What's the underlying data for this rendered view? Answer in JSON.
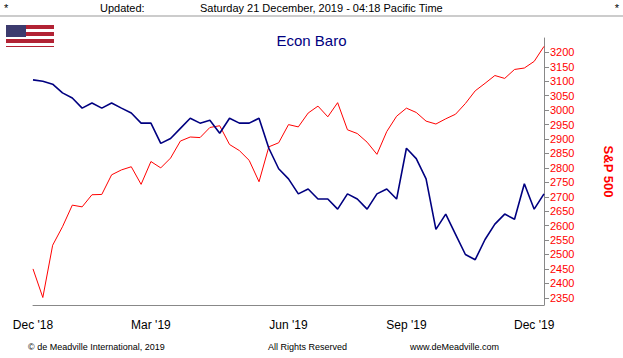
{
  "chart_data": {
    "type": "line",
    "title": "Econ Baro",
    "ylabel": "S&P 500",
    "annotations": [
      "*",
      "Updated:",
      "Saturday 21 December, 2019 - 04:18 Pacific Time",
      "*",
      "© de Meadville International, 2019",
      "All Rights Reserved",
      "www.deMeadville.com"
    ],
    "categories": [
      "Dec '18",
      null,
      null,
      null,
      null,
      null,
      null,
      null,
      null,
      null,
      null,
      null,
      "Mar '19",
      null,
      null,
      null,
      null,
      null,
      null,
      null,
      null,
      null,
      null,
      null,
      null,
      null,
      "Jun '19",
      null,
      null,
      null,
      null,
      null,
      null,
      null,
      null,
      null,
      null,
      null,
      "Sep '19",
      null,
      null,
      null,
      null,
      null,
      null,
      null,
      null,
      null,
      null,
      null,
      null,
      "Dec '19",
      null
    ],
    "series": [
      {
        "name": "Econ Baro",
        "color": "#000080",
        "values": [
          3105,
          3100,
          3090,
          3060,
          3042,
          3007,
          3025,
          3007,
          3025,
          3007,
          2990,
          2955,
          2955,
          2885,
          2902,
          2937,
          2972,
          2955,
          2965,
          2920,
          2972,
          2955,
          2955,
          2972,
          2868,
          2797,
          2762,
          2710,
          2727,
          2692,
          2692,
          2657,
          2710,
          2692,
          2657,
          2710,
          2727,
          2692,
          2868,
          2832,
          2762,
          2587,
          2640,
          2570,
          2500,
          2482,
          2552,
          2605,
          2640,
          2622,
          2745,
          2657,
          2710
        ]
      },
      {
        "name": "S&P 500",
        "color": "#ff0000",
        "values": [
          2450,
          2351,
          2532,
          2596,
          2671,
          2665,
          2707,
          2708,
          2776,
          2793,
          2804,
          2743,
          2822,
          2800,
          2834,
          2893,
          2907,
          2905,
          2940,
          2946,
          2881,
          2860,
          2826,
          2752,
          2873,
          2887,
          2950,
          2942,
          2990,
          3014,
          2977,
          3026,
          2932,
          2919,
          2889,
          2847,
          2926,
          2979,
          3007,
          2992,
          2962,
          2952,
          2970,
          2986,
          3023,
          3067,
          3093,
          3120,
          3110,
          3141,
          3146,
          3169,
          3221
        ]
      }
    ],
    "ylim": [
      2325,
      3250
    ],
    "yticks": [
      2350,
      2400,
      2450,
      2500,
      2550,
      2600,
      2650,
      2700,
      2750,
      2800,
      2850,
      2900,
      2950,
      3000,
      3050,
      3100,
      3150,
      3200
    ],
    "grid": false
  }
}
